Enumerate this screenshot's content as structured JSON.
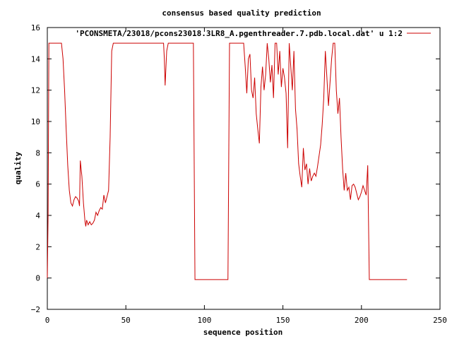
{
  "chart_data": {
    "type": "line",
    "title": "consensus based quality prediction",
    "xlabel": "sequence position",
    "ylabel": "quality",
    "xlim": [
      0,
      250
    ],
    "ylim": [
      -2,
      16
    ],
    "xticks": [
      0,
      50,
      100,
      150,
      200,
      250
    ],
    "yticks": [
      -2,
      0,
      2,
      4,
      6,
      8,
      10,
      12,
      14,
      16
    ],
    "grid": false,
    "legend_position": "top-right",
    "series": [
      {
        "name": "'PCONSMETA/23018/pcons23018.3LR8_A.pgenthreader.7.pdb.local.dat' u 1:2",
        "color": "#cc0000",
        "points": [
          [
            0,
            0
          ],
          [
            0.5,
            4
          ],
          [
            1,
            15
          ],
          [
            9,
            15
          ],
          [
            10,
            14
          ],
          [
            11,
            12
          ],
          [
            12,
            9.5
          ],
          [
            13,
            7.2
          ],
          [
            14,
            5.6
          ],
          [
            15,
            4.8
          ],
          [
            16,
            4.6
          ],
          [
            17,
            5.0
          ],
          [
            18,
            5.2
          ],
          [
            19,
            5.1
          ],
          [
            20,
            4.9
          ],
          [
            20.5,
            4.6
          ],
          [
            21,
            7.5
          ],
          [
            22,
            6.5
          ],
          [
            23,
            4.8
          ],
          [
            24,
            3.6
          ],
          [
            24.5,
            3.3
          ],
          [
            25,
            3.7
          ],
          [
            26,
            3.4
          ],
          [
            27,
            3.6
          ],
          [
            28,
            3.4
          ],
          [
            29,
            3.5
          ],
          [
            30,
            3.7
          ],
          [
            31,
            4.2
          ],
          [
            32,
            4.0
          ],
          [
            33,
            4.3
          ],
          [
            34,
            4.5
          ],
          [
            35,
            4.4
          ],
          [
            36,
            5.3
          ],
          [
            37,
            4.8
          ],
          [
            38,
            5.2
          ],
          [
            39,
            5.6
          ],
          [
            40,
            9.0
          ],
          [
            41,
            14.5
          ],
          [
            42,
            15
          ],
          [
            74,
            15
          ],
          [
            74.5,
            14
          ],
          [
            75,
            12.3
          ],
          [
            76,
            14.5
          ],
          [
            77,
            15
          ],
          [
            93,
            15
          ],
          [
            94,
            -0.1
          ],
          [
            115,
            -0.1
          ],
          [
            116,
            15
          ],
          [
            125,
            15
          ],
          [
            126,
            13.5
          ],
          [
            127,
            11.8
          ],
          [
            128,
            14
          ],
          [
            129,
            14.3
          ],
          [
            130,
            12
          ],
          [
            131,
            11.5
          ],
          [
            132,
            12.8
          ],
          [
            133,
            10.5
          ],
          [
            134,
            9.5
          ],
          [
            135,
            8.6
          ],
          [
            136,
            12.2
          ],
          [
            137,
            13.5
          ],
          [
            138,
            12.0
          ],
          [
            139,
            13.0
          ],
          [
            140,
            15
          ],
          [
            141,
            14.0
          ],
          [
            142,
            12.5
          ],
          [
            143,
            13.6
          ],
          [
            144,
            11.5
          ],
          [
            145,
            15
          ],
          [
            146,
            15
          ],
          [
            147,
            13.0
          ],
          [
            148,
            14.5
          ],
          [
            149,
            12.2
          ],
          [
            150,
            13.4
          ],
          [
            151,
            12.8
          ],
          [
            152,
            11.8
          ],
          [
            153,
            8.3
          ],
          [
            154,
            15
          ],
          [
            155,
            13.5
          ],
          [
            156,
            12.0
          ],
          [
            157,
            14.5
          ],
          [
            158,
            10.8
          ],
          [
            159,
            9.5
          ],
          [
            160,
            7.3
          ],
          [
            161,
            6.5
          ],
          [
            162,
            5.8
          ],
          [
            163,
            8.3
          ],
          [
            164,
            6.9
          ],
          [
            165,
            7.3
          ],
          [
            166,
            6.0
          ],
          [
            167,
            7.0
          ],
          [
            168,
            6.2
          ],
          [
            169,
            6.5
          ],
          [
            170,
            6.7
          ],
          [
            171,
            6.5
          ],
          [
            172,
            7.1
          ],
          [
            173,
            7.8
          ],
          [
            174,
            8.5
          ],
          [
            175,
            9.8
          ],
          [
            176,
            11.5
          ],
          [
            177,
            14.5
          ],
          [
            178,
            12.8
          ],
          [
            179,
            11.0
          ],
          [
            180,
            12.5
          ],
          [
            181,
            14.0
          ],
          [
            182,
            15
          ],
          [
            183,
            15
          ],
          [
            184,
            12.0
          ],
          [
            185,
            10.5
          ],
          [
            186,
            11.5
          ],
          [
            187,
            9.0
          ],
          [
            188,
            7.0
          ],
          [
            189,
            5.6
          ],
          [
            190,
            6.7
          ],
          [
            191,
            5.6
          ],
          [
            192,
            5.8
          ],
          [
            193,
            5.0
          ],
          [
            194,
            5.9
          ],
          [
            195,
            6.0
          ],
          [
            196,
            5.8
          ],
          [
            197,
            5.4
          ],
          [
            198,
            5.0
          ],
          [
            199,
            5.2
          ],
          [
            200,
            5.5
          ],
          [
            201,
            5.9
          ],
          [
            202,
            5.6
          ],
          [
            203,
            5.3
          ],
          [
            204,
            7.2
          ],
          [
            205,
            -0.1
          ],
          [
            229,
            -0.1
          ]
        ]
      }
    ]
  }
}
